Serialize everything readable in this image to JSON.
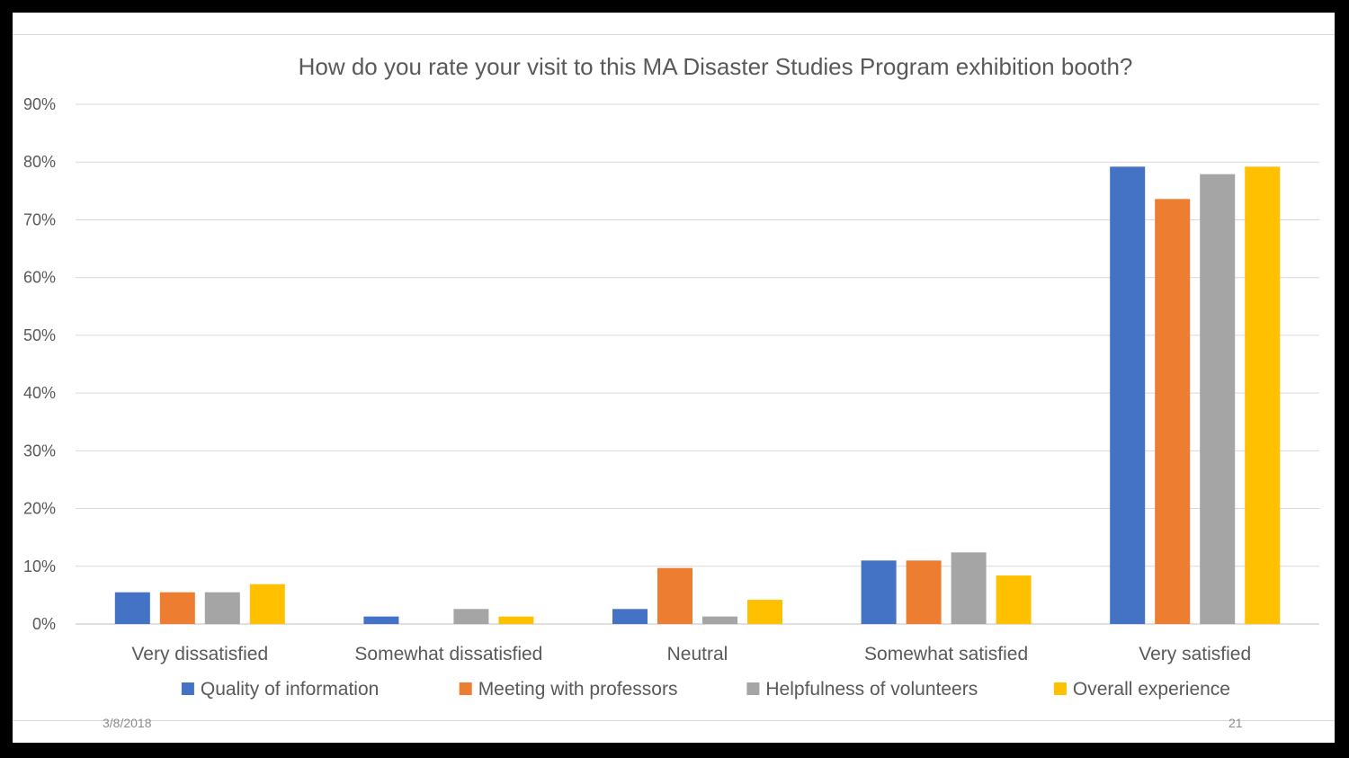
{
  "slide": {
    "date": "3/8/2018",
    "page_number": "21"
  },
  "chart_data": {
    "type": "bar",
    "title": "How do you rate your visit to this MA Disaster Studies Program exhibition booth?",
    "categories": [
      "Very dissatisfied",
      "Somewhat dissatisfied",
      "Neutral",
      "Somewhat satisfied",
      "Very satisfied"
    ],
    "series": [
      {
        "name": "Quality of information",
        "color": "#4472c4",
        "values": [
          5.5,
          1.3,
          2.6,
          11,
          79.2
        ]
      },
      {
        "name": "Meeting with professors",
        "color": "#ed7d31",
        "values": [
          5.5,
          0,
          9.7,
          11,
          73.6
        ]
      },
      {
        "name": "Helpfulness of volunteers",
        "color": "#a5a5a5",
        "values": [
          5.5,
          2.6,
          1.3,
          12.4,
          77.9
        ]
      },
      {
        "name": "Overall experience",
        "color": "#ffc000",
        "values": [
          6.9,
          1.3,
          4.2,
          8.4,
          79.2
        ]
      }
    ],
    "ylim": [
      0,
      90
    ],
    "yticks": [
      "0%",
      "10%",
      "20%",
      "30%",
      "40%",
      "50%",
      "60%",
      "70%",
      "80%",
      "90%"
    ],
    "xlabel": "",
    "ylabel": "",
    "grid": true,
    "legend": "bottom"
  }
}
